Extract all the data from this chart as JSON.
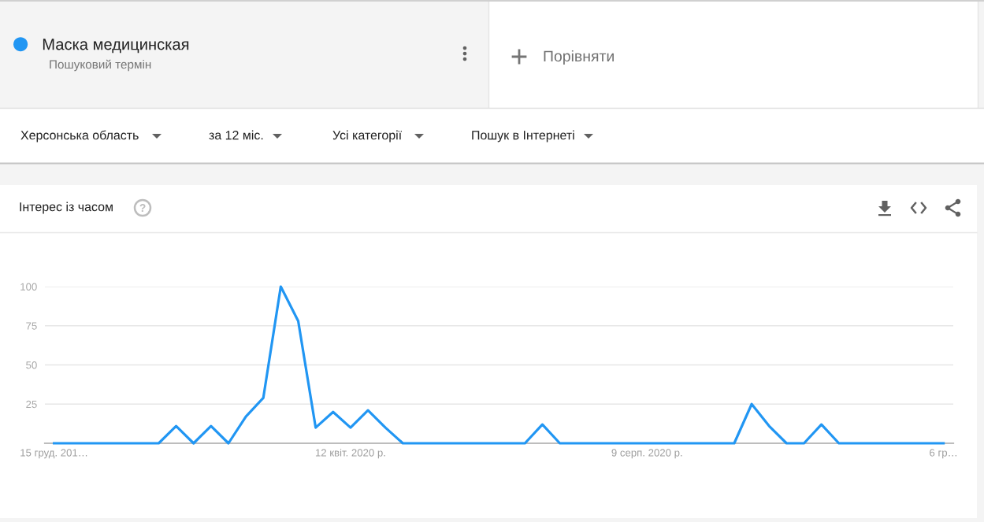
{
  "chart_data": {
    "type": "line",
    "title": "Інтерес із часом",
    "annotations": [
      "Пошуковий термін",
      "Порівняти",
      "Херсонська область",
      "за 12 міс.",
      "Усі категорії",
      "Пошук в Інтернеті"
    ],
    "x": [
      "2019-12-15",
      "2019-12-22",
      "2019-12-29",
      "2020-01-05",
      "2020-01-12",
      "2020-01-19",
      "2020-01-26",
      "2020-02-02",
      "2020-02-09",
      "2020-02-16",
      "2020-02-23",
      "2020-03-01",
      "2020-03-08",
      "2020-03-15",
      "2020-03-22",
      "2020-03-29",
      "2020-04-05",
      "2020-04-12",
      "2020-04-19",
      "2020-04-26",
      "2020-05-03",
      "2020-05-10",
      "2020-05-17",
      "2020-05-24",
      "2020-05-31",
      "2020-06-07",
      "2020-06-14",
      "2020-06-21",
      "2020-06-28",
      "2020-07-05",
      "2020-07-12",
      "2020-07-19",
      "2020-07-26",
      "2020-08-02",
      "2020-08-09",
      "2020-08-16",
      "2020-08-23",
      "2020-08-30",
      "2020-09-06",
      "2020-09-13",
      "2020-09-20",
      "2020-09-27",
      "2020-10-04",
      "2020-10-11",
      "2020-10-18",
      "2020-10-25",
      "2020-11-01",
      "2020-11-08",
      "2020-11-15",
      "2020-11-22",
      "2020-11-29",
      "2020-12-06"
    ],
    "series": [
      {
        "name": "Маска медицинская",
        "color": "#2196f3",
        "values": [
          0,
          0,
          0,
          0,
          0,
          0,
          0,
          11,
          0,
          11,
          0,
          17,
          29,
          100,
          78,
          10,
          20,
          10,
          21,
          10,
          0,
          0,
          0,
          0,
          0,
          0,
          0,
          0,
          12,
          0,
          0,
          0,
          0,
          0,
          0,
          0,
          0,
          0,
          0,
          0,
          25,
          11,
          0,
          0,
          12,
          0,
          0,
          0,
          0,
          0,
          0,
          0
        ]
      }
    ],
    "xlim": [
      "2019-12-11T08:00",
      "2020-12-09T22:00"
    ],
    "xticks": [
      {
        "value": "2019-12-15",
        "label": "15 груд. 201…"
      },
      {
        "value": "2020-04-12",
        "label": "12 квіт. 2020 р."
      },
      {
        "value": "2020-08-09",
        "label": "9 серп. 2020 р."
      },
      {
        "value": "2020-12-06",
        "label": "6 гр…"
      }
    ],
    "ylim": [
      0,
      100
    ],
    "yticks": [
      25,
      50,
      75,
      100
    ],
    "grid": "y",
    "legend": "top left",
    "marker": "none",
    "line_style": "solid"
  }
}
